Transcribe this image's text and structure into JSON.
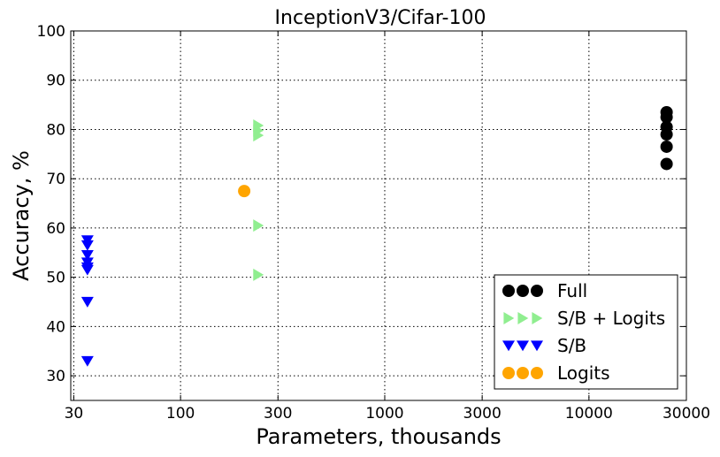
{
  "chart_data": {
    "type": "scatter",
    "title": "InceptionV3/Cifar-100",
    "xlabel": "Parameters, thousands",
    "ylabel": "Accuracy, %",
    "xscale": "log",
    "xlim": [
      29,
      30000
    ],
    "ylim": [
      25,
      100
    ],
    "xticks": [
      30,
      100,
      300,
      1000,
      3000,
      10000,
      30000
    ],
    "xtick_labels": [
      "30",
      "100",
      "300",
      "1000",
      "3000",
      "10000",
      "30000"
    ],
    "yticks": [
      30,
      40,
      50,
      60,
      70,
      80,
      90,
      100
    ],
    "ytick_labels": [
      "30",
      "40",
      "50",
      "60",
      "70",
      "80",
      "90",
      "100"
    ],
    "grid": true,
    "legend_position": "lower-right",
    "series": [
      {
        "name": "Full",
        "marker": "circle",
        "color": "#000000",
        "points": [
          [
            24000,
            83.5
          ],
          [
            24000,
            82.5
          ],
          [
            24000,
            80.5
          ],
          [
            24000,
            79.0
          ],
          [
            24000,
            76.5
          ],
          [
            24000,
            73.0
          ]
        ]
      },
      {
        "name": "S/B + Logits",
        "marker": "triangle-right",
        "color": "#90ee90",
        "points": [
          [
            240,
            80.8
          ],
          [
            240,
            79.8
          ],
          [
            240,
            78.8
          ],
          [
            240,
            60.5
          ],
          [
            240,
            50.5
          ]
        ]
      },
      {
        "name": "S/B",
        "marker": "triangle-down",
        "color": "#0000ff",
        "points": [
          [
            35,
            57.5
          ],
          [
            35,
            56.5
          ],
          [
            35,
            54.5
          ],
          [
            35,
            53.0
          ],
          [
            35,
            52.0
          ],
          [
            35,
            51.5
          ],
          [
            35,
            45.0
          ],
          [
            35,
            33.0
          ]
        ]
      },
      {
        "name": "Logits",
        "marker": "circle",
        "color": "#ffa500",
        "points": [
          [
            205,
            67.5
          ]
        ]
      }
    ]
  }
}
